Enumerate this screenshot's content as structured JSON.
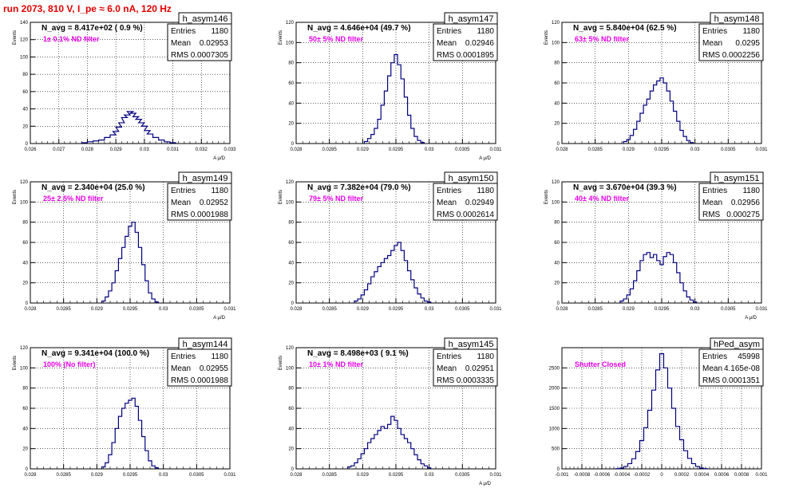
{
  "run_title": "run 2073,   810 V, I_pe ≈ 6.0 nA, 120 Hz",
  "colors": {
    "histogram": "#000080",
    "title": "#e00000",
    "filter_text": "#e600e6",
    "grid": "#000000"
  },
  "chart_data": [
    {
      "type": "histogram",
      "name": "h_asym146",
      "title": "N_avg = 8.417e+02 ( 0.9 %)",
      "annotation": "1± 0.1% ND filter",
      "ylabel": "Events",
      "xlabel": "A_{ μ/D}",
      "xlim": [
        0.026,
        0.033
      ],
      "ylim": [
        0,
        140
      ],
      "xticks": [
        "0.026",
        "0.027",
        "0.028",
        "0.029",
        "0.03",
        "0.031",
        "0.032",
        "0.033"
      ],
      "yticks": [
        "0",
        "20",
        "40",
        "60",
        "80",
        "100",
        "120",
        "140"
      ],
      "stats": [
        [
          "Entries",
          "1180"
        ],
        [
          "Mean",
          "0.02953"
        ],
        [
          "RMS",
          "0.0007305"
        ]
      ],
      "values": [
        [
          0.0279,
          1
        ],
        [
          0.0281,
          2
        ],
        [
          0.0283,
          3
        ],
        [
          0.0285,
          4
        ],
        [
          0.0287,
          7
        ],
        [
          0.0289,
          10
        ],
        [
          0.029,
          14
        ],
        [
          0.0291,
          19
        ],
        [
          0.0292,
          24
        ],
        [
          0.0293,
          30
        ],
        [
          0.0294,
          33
        ],
        [
          0.0295,
          37
        ],
        [
          0.0296,
          35
        ],
        [
          0.0297,
          31
        ],
        [
          0.0298,
          28
        ],
        [
          0.0299,
          24
        ],
        [
          0.03,
          20
        ],
        [
          0.0301,
          15
        ],
        [
          0.0302,
          11
        ],
        [
          0.0304,
          7
        ],
        [
          0.0306,
          4
        ],
        [
          0.0308,
          2
        ],
        [
          0.031,
          1
        ]
      ]
    },
    {
      "type": "histogram",
      "name": "h_asym147",
      "title": "N_avg = 4.646e+04 (49.7 %)",
      "annotation": "50± 5% ND filter",
      "ylabel": "Events",
      "xlabel": "A_{ μ/D}",
      "xlim": [
        0.028,
        0.031
      ],
      "ylim": [
        0,
        120
      ],
      "xticks": [
        "0.028",
        "0.0285",
        "0.029",
        "0.0295",
        "0.03",
        "0.0305",
        "0.031"
      ],
      "yticks": [
        "0",
        "20",
        "40",
        "60",
        "80",
        "100",
        "120"
      ],
      "stats": [
        [
          "Entries",
          "1180"
        ],
        [
          "Mean",
          "0.02946"
        ],
        [
          "RMS",
          "0.0001895"
        ]
      ],
      "values": [
        [
          0.02905,
          2
        ],
        [
          0.0291,
          5
        ],
        [
          0.02915,
          9
        ],
        [
          0.0292,
          15
        ],
        [
          0.02925,
          24
        ],
        [
          0.0293,
          38
        ],
        [
          0.02935,
          52
        ],
        [
          0.0294,
          67
        ],
        [
          0.02945,
          80
        ],
        [
          0.0295,
          88
        ],
        [
          0.02955,
          78
        ],
        [
          0.0296,
          64
        ],
        [
          0.02965,
          46
        ],
        [
          0.0297,
          28
        ],
        [
          0.02975,
          15
        ],
        [
          0.0298,
          7
        ],
        [
          0.02985,
          3
        ],
        [
          0.0299,
          1
        ]
      ]
    },
    {
      "type": "histogram",
      "name": "h_asym148",
      "title": "N_avg = 5.840e+04 (62.5 %)",
      "annotation": "63± 5% ND filter",
      "ylabel": "Events",
      "xlabel": "",
      "xlim": [
        0.028,
        0.031
      ],
      "ylim": [
        0,
        120
      ],
      "xticks": [
        "0.028",
        "0.0285",
        "0.029",
        "0.0295",
        "0.03",
        "0.0305",
        "0.031"
      ],
      "yticks": [
        "0",
        "20",
        "40",
        "60",
        "80",
        "100",
        "120"
      ],
      "stats": [
        [
          "Entries",
          "1180"
        ],
        [
          "Mean",
          "0.0295"
        ],
        [
          "RMS",
          "0.0002256"
        ]
      ],
      "values": [
        [
          0.02895,
          2
        ],
        [
          0.029,
          4
        ],
        [
          0.02905,
          8
        ],
        [
          0.0291,
          14
        ],
        [
          0.02915,
          22
        ],
        [
          0.0292,
          30
        ],
        [
          0.02925,
          38
        ],
        [
          0.0293,
          44
        ],
        [
          0.02935,
          52
        ],
        [
          0.0294,
          58
        ],
        [
          0.02945,
          62
        ],
        [
          0.0295,
          65
        ],
        [
          0.02955,
          60
        ],
        [
          0.0296,
          52
        ],
        [
          0.02965,
          42
        ],
        [
          0.0297,
          32
        ],
        [
          0.02975,
          22
        ],
        [
          0.0298,
          13
        ],
        [
          0.02985,
          7
        ],
        [
          0.0299,
          3
        ],
        [
          0.02995,
          1
        ]
      ]
    },
    {
      "type": "histogram",
      "name": "h_asym149",
      "title": "N_avg = 2.340e+04 (25.0 %)",
      "annotation": "25± 2.5% ND filter",
      "ylabel": "Events",
      "xlabel": "A_{ μ/D}",
      "xlim": [
        0.028,
        0.031
      ],
      "ylim": [
        0,
        120
      ],
      "xticks": [
        "0.028",
        "0.0285",
        "0.029",
        "0.0295",
        "0.03",
        "0.0305",
        "0.031"
      ],
      "yticks": [
        "0",
        "20",
        "40",
        "60",
        "80",
        "100",
        "120"
      ],
      "stats": [
        [
          "Entries",
          "1180"
        ],
        [
          "Mean",
          "0.02952"
        ],
        [
          "RMS",
          "0.0001988"
        ]
      ],
      "values": [
        [
          0.0291,
          2
        ],
        [
          0.02915,
          6
        ],
        [
          0.0292,
          12
        ],
        [
          0.02925,
          20
        ],
        [
          0.0293,
          32
        ],
        [
          0.02935,
          44
        ],
        [
          0.0294,
          55
        ],
        [
          0.02945,
          66
        ],
        [
          0.0295,
          76
        ],
        [
          0.02955,
          80
        ],
        [
          0.0296,
          70
        ],
        [
          0.02965,
          55
        ],
        [
          0.0297,
          38
        ],
        [
          0.02975,
          22
        ],
        [
          0.0298,
          10
        ],
        [
          0.02985,
          4
        ],
        [
          0.0299,
          1
        ]
      ]
    },
    {
      "type": "histogram",
      "name": "h_asym150",
      "title": "N_avg = 7.382e+04 (79.0 %)",
      "annotation": "79± 5% ND filter",
      "ylabel": "Events",
      "xlabel": "",
      "xlim": [
        0.028,
        0.031
      ],
      "ylim": [
        0,
        120
      ],
      "xticks": [
        "0.028",
        "0.0285",
        "0.029",
        "0.0295",
        "0.03",
        "0.0305",
        "0.031"
      ],
      "yticks": [
        "0",
        "20",
        "40",
        "60",
        "80",
        "100",
        "120"
      ],
      "stats": [
        [
          "Entries",
          "1180"
        ],
        [
          "Mean",
          "0.02949"
        ],
        [
          "RMS",
          "0.0002614"
        ]
      ],
      "values": [
        [
          0.0289,
          2
        ],
        [
          0.02895,
          4
        ],
        [
          0.029,
          8
        ],
        [
          0.02905,
          13
        ],
        [
          0.0291,
          19
        ],
        [
          0.02915,
          26
        ],
        [
          0.0292,
          31
        ],
        [
          0.02925,
          36
        ],
        [
          0.0293,
          40
        ],
        [
          0.02935,
          44
        ],
        [
          0.0294,
          47
        ],
        [
          0.02945,
          52
        ],
        [
          0.0295,
          57
        ],
        [
          0.02955,
          60
        ],
        [
          0.0296,
          52
        ],
        [
          0.02965,
          42
        ],
        [
          0.0297,
          32
        ],
        [
          0.02975,
          23
        ],
        [
          0.0298,
          15
        ],
        [
          0.02985,
          9
        ],
        [
          0.0299,
          5
        ],
        [
          0.02995,
          2
        ],
        [
          0.03,
          1
        ]
      ]
    },
    {
      "type": "histogram",
      "name": "h_asym151",
      "title": "N_avg = 3.670e+04 (39.3 %)",
      "annotation": "40± 4% ND filter",
      "ylabel": "Events",
      "xlabel": "A_{ μ/D}",
      "xlim": [
        0.028,
        0.031
      ],
      "ylim": [
        0,
        120
      ],
      "xticks": [
        "0.028",
        "0.0285",
        "0.029",
        "0.0295",
        "0.03",
        "0.0305",
        "0.031"
      ],
      "yticks": [
        "0",
        "20",
        "40",
        "60",
        "80",
        "100",
        "120"
      ],
      "stats": [
        [
          "Entries",
          "1180"
        ],
        [
          "Mean",
          "0.02956"
        ],
        [
          "RMS",
          "0.000275"
        ]
      ],
      "values": [
        [
          0.0289,
          2
        ],
        [
          0.02895,
          4
        ],
        [
          0.029,
          8
        ],
        [
          0.02905,
          14
        ],
        [
          0.0291,
          22
        ],
        [
          0.02915,
          32
        ],
        [
          0.0292,
          42
        ],
        [
          0.02925,
          48
        ],
        [
          0.0293,
          50
        ],
        [
          0.02935,
          45
        ],
        [
          0.0294,
          48
        ],
        [
          0.02945,
          42
        ],
        [
          0.0295,
          38
        ],
        [
          0.02955,
          46
        ],
        [
          0.0296,
          50
        ],
        [
          0.02965,
          48
        ],
        [
          0.0297,
          40
        ],
        [
          0.02975,
          30
        ],
        [
          0.0298,
          20
        ],
        [
          0.02985,
          12
        ],
        [
          0.0299,
          6
        ],
        [
          0.02995,
          3
        ],
        [
          0.03,
          1
        ]
      ]
    },
    {
      "type": "histogram",
      "name": "h_asym144",
      "title": "N_avg = 9.341e+04 (100.0 %)",
      "annotation": "100% (No filter)",
      "ylabel": "Events",
      "xlabel": "",
      "xlim": [
        0.028,
        0.031
      ],
      "ylim": [
        0,
        120
      ],
      "xticks": [
        "0.028",
        "0.0285",
        "0.029",
        "0.0295",
        "0.03",
        "0.0305",
        "0.031"
      ],
      "yticks": [
        "0",
        "20",
        "40",
        "60",
        "80",
        "100",
        "120"
      ],
      "stats": [
        [
          "Entries",
          "1180"
        ],
        [
          "Mean",
          "0.02955"
        ],
        [
          "RMS",
          "0.0001988"
        ]
      ],
      "values": [
        [
          0.0291,
          2
        ],
        [
          0.02915,
          6
        ],
        [
          0.0292,
          14
        ],
        [
          0.02925,
          26
        ],
        [
          0.0293,
          40
        ],
        [
          0.02935,
          52
        ],
        [
          0.0294,
          60
        ],
        [
          0.02945,
          65
        ],
        [
          0.0295,
          68
        ],
        [
          0.02955,
          70
        ],
        [
          0.0296,
          62
        ],
        [
          0.02965,
          48
        ],
        [
          0.0297,
          32
        ],
        [
          0.02975,
          18
        ],
        [
          0.0298,
          8
        ],
        [
          0.02985,
          3
        ],
        [
          0.0299,
          1
        ]
      ]
    },
    {
      "type": "histogram",
      "name": "h_asym145",
      "title": "N_avg = 8.498e+03 ( 9.1 %)",
      "annotation": "10± 1% ND filter",
      "ylabel": "Events",
      "xlabel": "A_{ μ/D}",
      "xlim": [
        0.028,
        0.031
      ],
      "ylim": [
        0,
        120
      ],
      "xticks": [
        "0.028",
        "0.0285",
        "0.029",
        "0.0295",
        "0.03",
        "0.0305",
        "0.031"
      ],
      "yticks": [
        "0",
        "20",
        "40",
        "60",
        "80",
        "100",
        "120"
      ],
      "stats": [
        [
          "Entries",
          "1180"
        ],
        [
          "Mean",
          "0.02951"
        ],
        [
          "RMS",
          "0.0003335"
        ]
      ],
      "values": [
        [
          0.0288,
          2
        ],
        [
          0.02885,
          3
        ],
        [
          0.0289,
          6
        ],
        [
          0.02895,
          10
        ],
        [
          0.029,
          15
        ],
        [
          0.02905,
          20
        ],
        [
          0.0291,
          26
        ],
        [
          0.02915,
          30
        ],
        [
          0.0292,
          34
        ],
        [
          0.02925,
          38
        ],
        [
          0.0293,
          42
        ],
        [
          0.02935,
          40
        ],
        [
          0.0294,
          44
        ],
        [
          0.02945,
          52
        ],
        [
          0.0295,
          48
        ],
        [
          0.02955,
          40
        ],
        [
          0.0296,
          34
        ],
        [
          0.02965,
          30
        ],
        [
          0.0297,
          26
        ],
        [
          0.02975,
          20
        ],
        [
          0.0298,
          14
        ],
        [
          0.02985,
          9
        ],
        [
          0.0299,
          5
        ],
        [
          0.02995,
          3
        ],
        [
          0.03,
          1
        ]
      ]
    },
    {
      "type": "histogram",
      "name": "hPed_asym",
      "title": "",
      "annotation": "Shutter Closed",
      "ylabel": "",
      "xlabel": "",
      "xlim": [
        -0.001,
        0.001
      ],
      "ylim": [
        0,
        3000
      ],
      "xticks": [
        "-0.001",
        "-0.0008",
        "-0.0006",
        "-0.0004",
        "-0.0002",
        "0",
        "0.0002",
        "0.0004",
        "0.0006",
        "0.0008",
        "0.001"
      ],
      "yticks": [
        "0",
        "500",
        "1000",
        "1500",
        "2000",
        "2500"
      ],
      "stats": [
        [
          "Entries",
          "45998"
        ],
        [
          "Mean",
          "4.165e-08"
        ],
        [
          "RMS",
          "0.0001351"
        ]
      ],
      "values": [
        [
          -0.00044,
          5
        ],
        [
          -0.0004,
          20
        ],
        [
          -0.00036,
          60
        ],
        [
          -0.00032,
          130
        ],
        [
          -0.00028,
          250
        ],
        [
          -0.00024,
          430
        ],
        [
          -0.0002,
          700
        ],
        [
          -0.00016,
          1020
        ],
        [
          -0.00012,
          1450
        ],
        [
          -8e-05,
          1950
        ],
        [
          -4e-05,
          2450
        ],
        [
          0.0,
          2850
        ],
        [
          4e-05,
          2500
        ],
        [
          8e-05,
          2000
        ],
        [
          0.00012,
          1500
        ],
        [
          0.00016,
          1050
        ],
        [
          0.0002,
          720
        ],
        [
          0.00024,
          450
        ],
        [
          0.00028,
          260
        ],
        [
          0.00032,
          130
        ],
        [
          0.00036,
          60
        ],
        [
          0.0004,
          20
        ],
        [
          0.00044,
          5
        ]
      ]
    }
  ]
}
